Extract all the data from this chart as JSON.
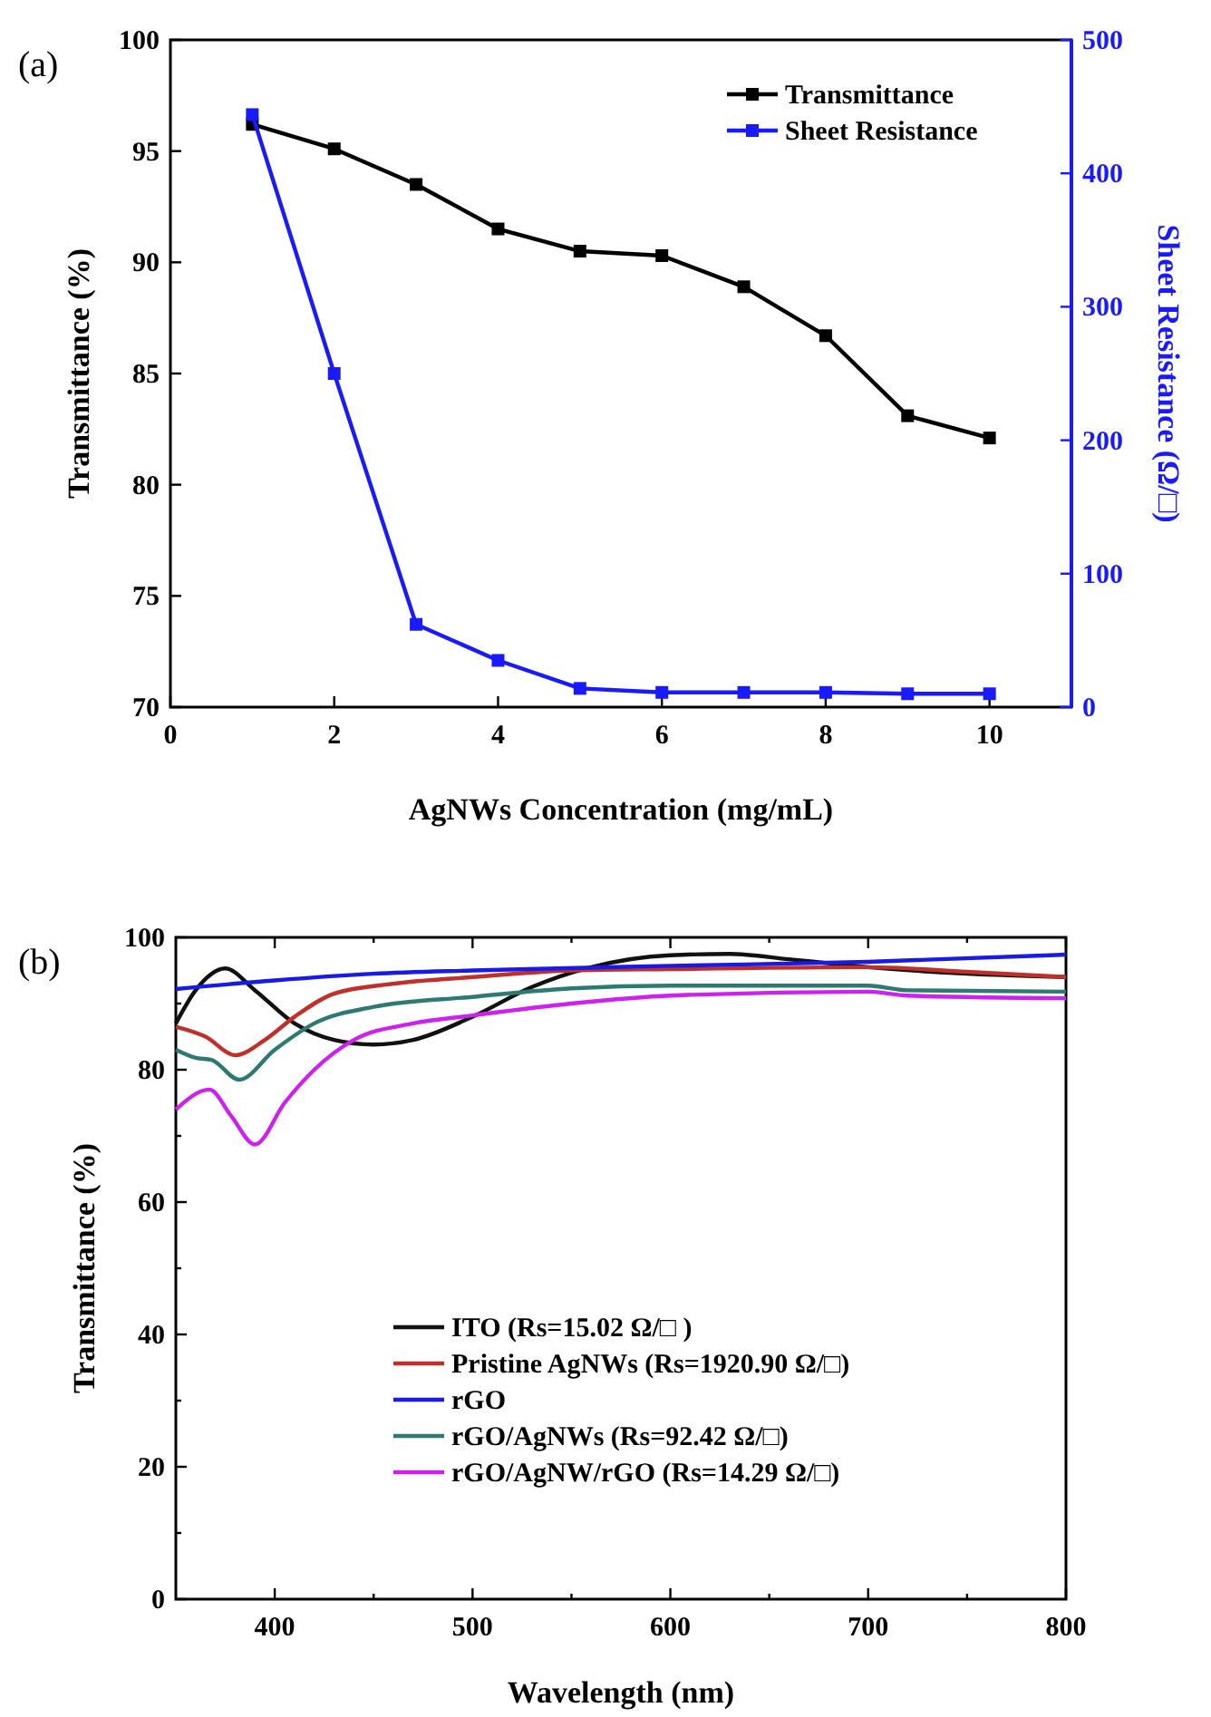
{
  "chart_data": [
    {
      "type": "line",
      "xlabel": "AgNWs Concentration (mg/mL)",
      "ylabel": "Transmittance (%)",
      "y2label": "Sheet Resistance (Ω/□)",
      "annotations": [
        "(a)"
      ],
      "x": [
        1,
        2,
        3,
        4,
        5,
        6,
        7,
        8,
        9,
        10
      ],
      "xlim": [
        0,
        11
      ],
      "xticks": [
        0,
        2,
        4,
        6,
        8,
        10
      ],
      "ylim": [
        70,
        100
      ],
      "yticks": [
        70,
        75,
        80,
        85,
        90,
        95,
        100
      ],
      "y2lim": [
        0,
        500
      ],
      "y2ticks": [
        0,
        100,
        200,
        300,
        400,
        500
      ],
      "marker": "square",
      "legend": "top right",
      "grid": false,
      "series": [
        {
          "name": "Transmittance",
          "color": "#000000",
          "values": [
            96.2,
            95.1,
            93.5,
            91.5,
            90.5,
            90.3,
            88.9,
            86.7,
            83.1,
            82.1
          ]
        },
        {
          "name": "Sheet Resistance",
          "color": "#1a1aff",
          "axis": "y2",
          "values": [
            444,
            250,
            62,
            35,
            14,
            11,
            11,
            11,
            10,
            10
          ]
        }
      ]
    },
    {
      "type": "line",
      "xlabel": "Wavelength (nm)",
      "ylabel": "Transmittance (%)",
      "annotations": [
        "(b)"
      ],
      "xlim": [
        350,
        800
      ],
      "xticks": [
        400,
        {
          "value": 450,
          "label": null
        },
        500,
        {
          "value": 550,
          "label": null
        },
        600,
        {
          "value": 650,
          "label": null
        },
        700,
        {
          "value": 750,
          "label": null
        },
        800
      ],
      "ylim": [
        0,
        100
      ],
      "yticks": [
        0,
        {
          "value": 10,
          "label": null
        },
        20,
        {
          "value": 30,
          "label": null
        },
        40,
        {
          "value": 50,
          "label": null
        },
        60,
        {
          "value": 70,
          "label": null
        },
        80,
        {
          "value": 90,
          "label": null
        },
        100
      ],
      "legend": "bottom",
      "grid": false,
      "series": [
        {
          "name": "ITO (Rs=15.02 Ω/□ )",
          "color": "#111111",
          "x": [
            350,
            360,
            375,
            390,
            410,
            430,
            450,
            470,
            500,
            530,
            560,
            600,
            630,
            660,
            700,
            750,
            800
          ],
          "values": [
            87,
            92,
            95.3,
            92,
            87,
            84.5,
            83.8,
            84.5,
            88,
            92.5,
            95.5,
            97.3,
            97.5,
            96.7,
            95.5,
            94.5,
            94
          ]
        },
        {
          "name": "Pristine AgNWs (Rs=1920.90 Ω/□)",
          "color": "#c0302a",
          "x": [
            350,
            365,
            380,
            395,
            410,
            430,
            460,
            500,
            550,
            600,
            700,
            750,
            800
          ],
          "values": [
            86.5,
            85,
            82.2,
            84.5,
            88,
            91.5,
            93,
            94,
            95,
            95.2,
            95.5,
            94.8,
            94
          ]
        },
        {
          "name": "rGO",
          "color": "#1a1ae6",
          "x": [
            350,
            400,
            450,
            500,
            600,
            700,
            800
          ],
          "values": [
            92.2,
            93.5,
            94.5,
            95,
            95.7,
            96.3,
            97.4
          ]
        },
        {
          "name": "rGO/AgNWs (Rs=92.42 Ω/□)",
          "color": "#2e7a72",
          "x": [
            350,
            360,
            368,
            382,
            400,
            420,
            450,
            500,
            550,
            600,
            700,
            720,
            800
          ],
          "values": [
            83,
            81.8,
            81.5,
            78.5,
            83,
            87,
            89.5,
            91,
            92.3,
            92.7,
            92.7,
            92,
            91.8
          ]
        },
        {
          "name": "rGO/AgNW/rGO (Rs=14.29 Ω/□)",
          "color": "#cc22ee",
          "x": [
            350,
            367,
            378,
            390,
            405,
            420,
            440,
            470,
            500,
            550,
            600,
            700,
            720,
            800
          ],
          "values": [
            74,
            77,
            73,
            68.7,
            75,
            80,
            84.5,
            87,
            88.2,
            90,
            91.2,
            91.8,
            91.2,
            90.8
          ]
        }
      ]
    }
  ]
}
